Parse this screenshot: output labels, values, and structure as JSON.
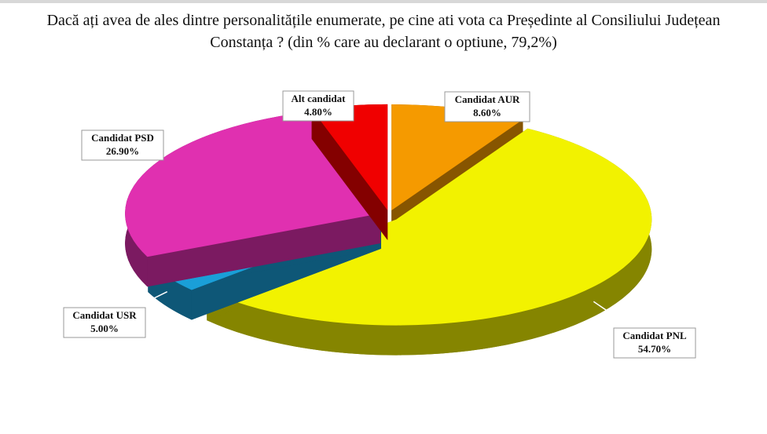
{
  "chart_data": {
    "type": "pie",
    "title": "Dacă ați avea de ales dintre personalitățile enumerate, pe cine ati vota ca Președinte al Consiliului Județean Constanța ? (din % care au declarant o optiune, 79,2%)",
    "categories": [
      "Candidat AUR",
      "Candidat PNL",
      "Candidat USR",
      "Candidat PSD",
      "Alt candidat"
    ],
    "values": [
      8.6,
      54.7,
      5.0,
      26.9,
      4.8
    ],
    "value_labels": [
      "8.60%",
      "54.70%",
      "5.00%",
      "26.90%",
      "4.80%"
    ],
    "colors": [
      "#f59a00",
      "#f2f200",
      "#1a9fd8",
      "#e030b0",
      "#f00000"
    ]
  }
}
